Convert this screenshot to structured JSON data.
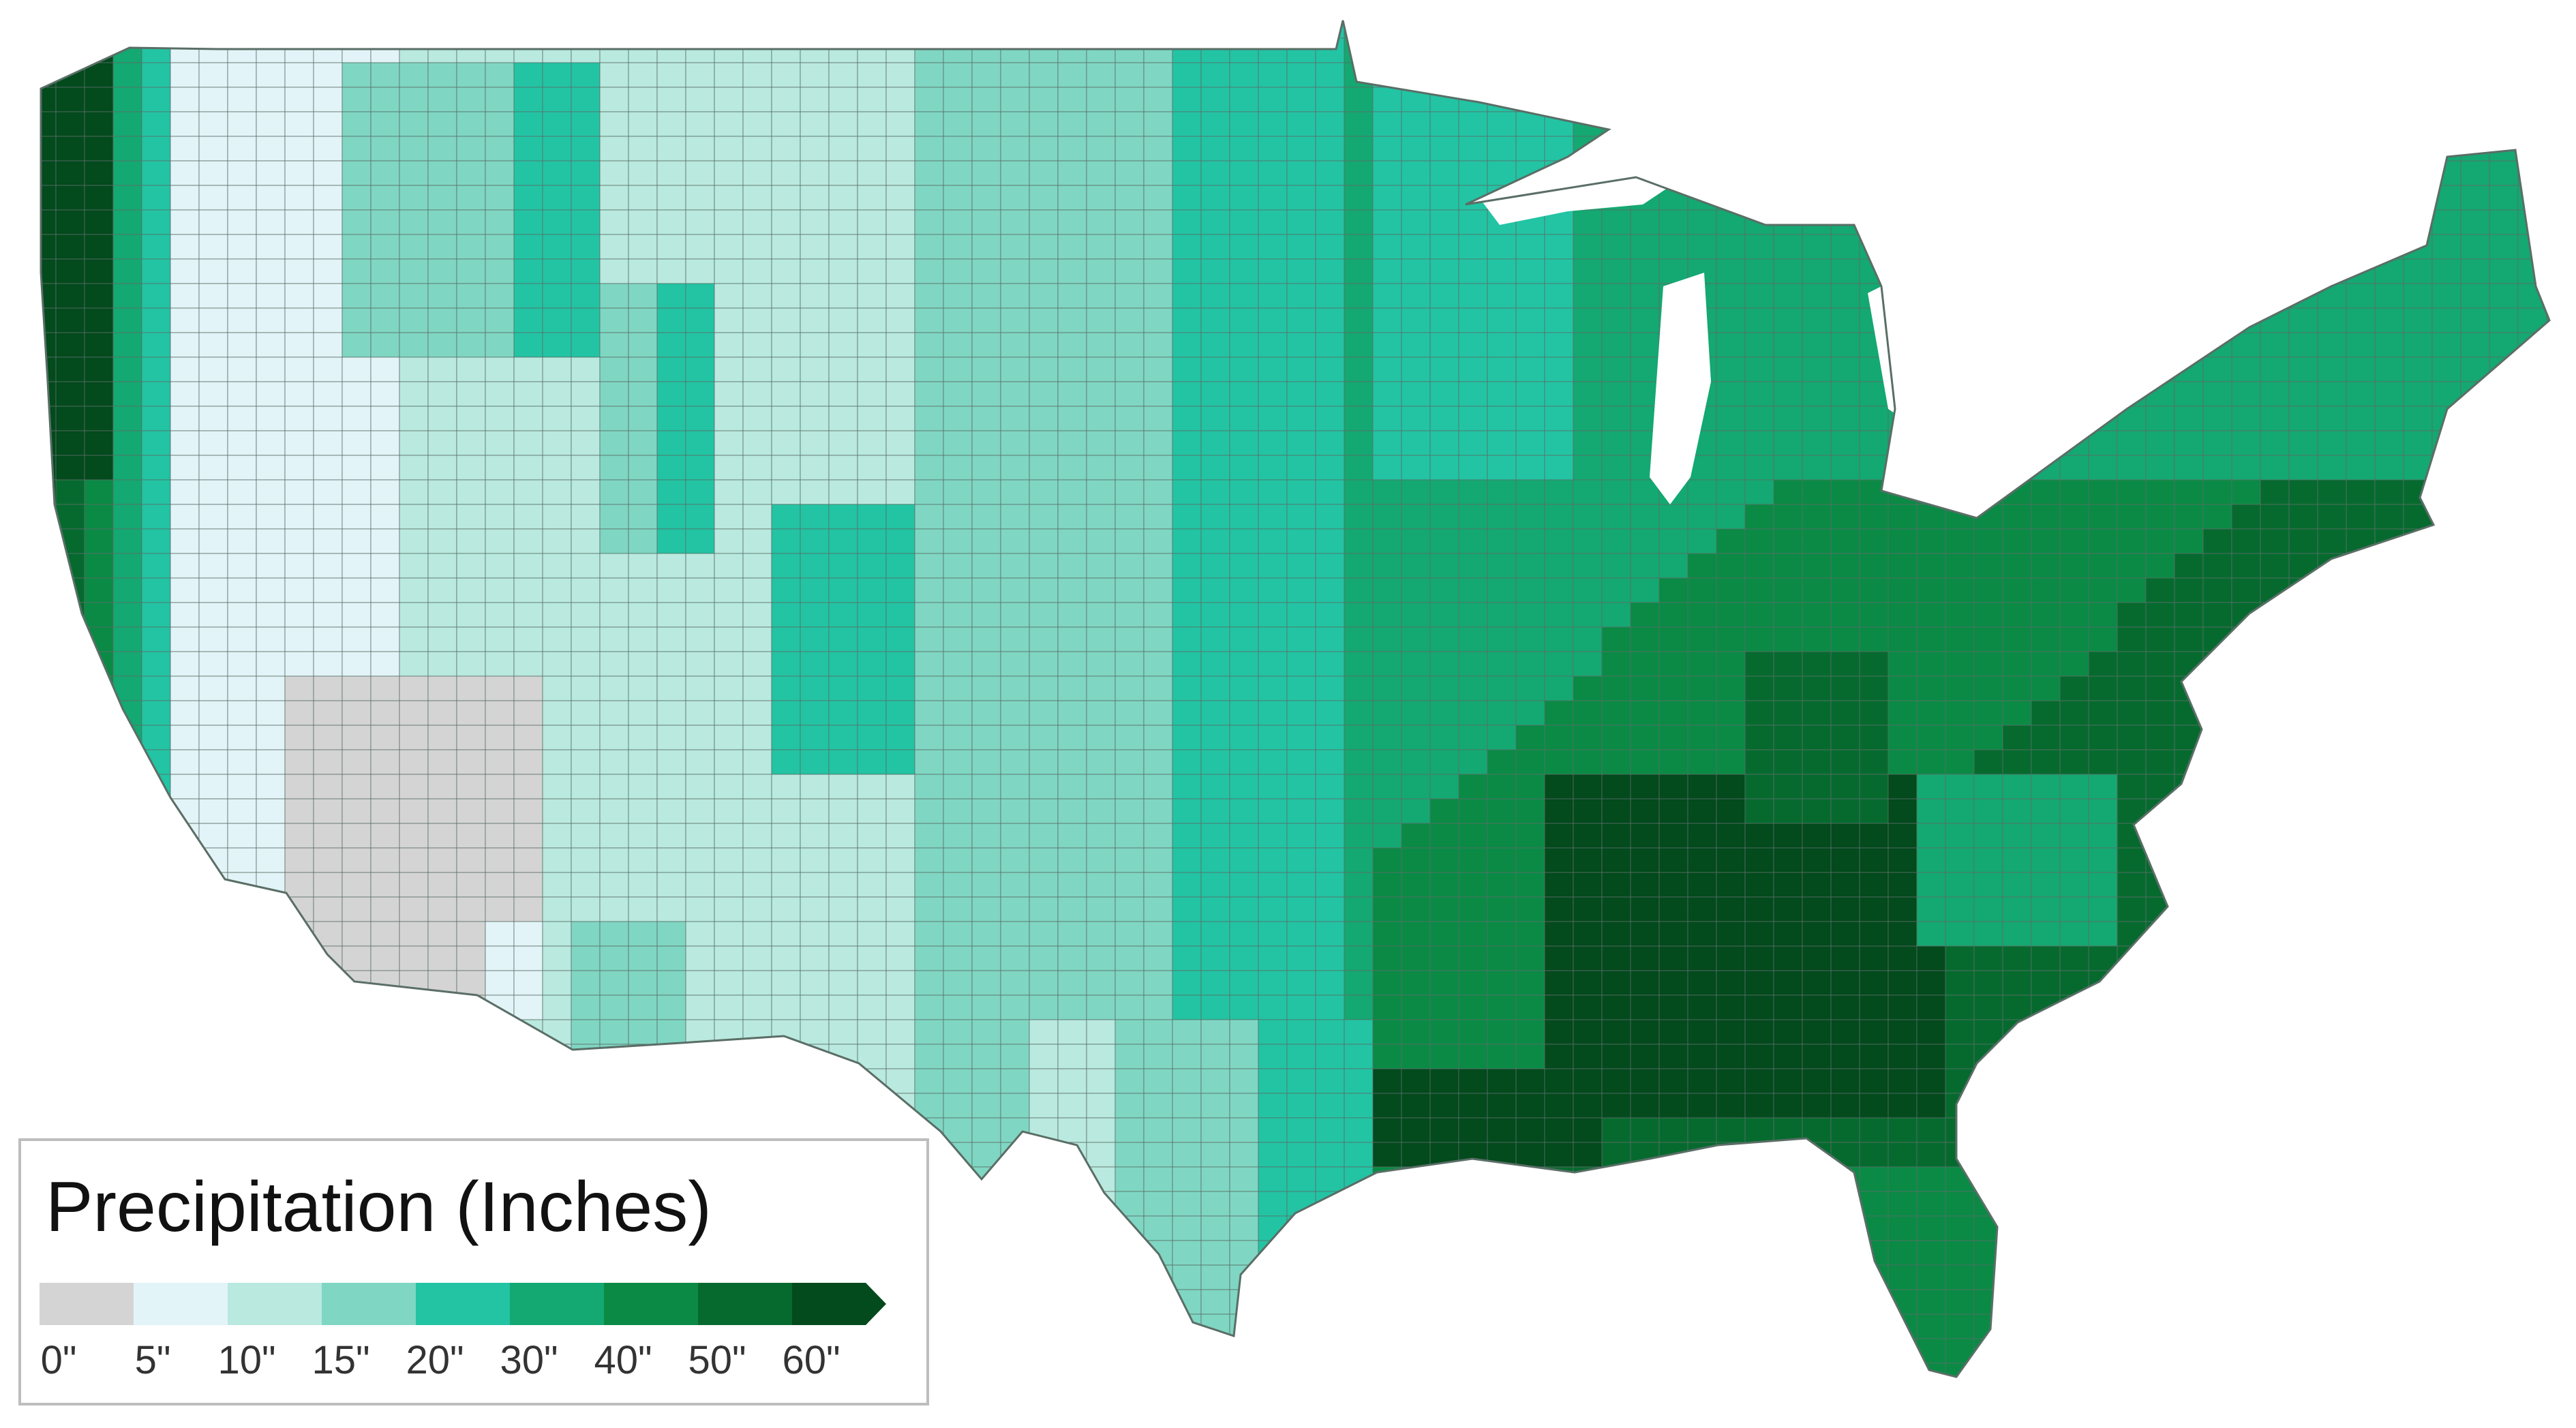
{
  "map": {
    "title": "",
    "region": "Contiguous United States",
    "unit_type": "county",
    "ocean_color": "#ffffff",
    "border_color": "#5a6e66",
    "dominant_pattern": "Precipitation increases from the arid Southwest (0-5\") to the humid Southeast (50-60\"+); Pacific Northwest coast also very wet (60\"+)."
  },
  "legend": {
    "title": "Precipitation (Inches)",
    "bins": [
      {
        "label": "0\"",
        "color": "#d4d4d4"
      },
      {
        "label": "5\"",
        "color": "#e2f4f7"
      },
      {
        "label": "10\"",
        "color": "#b9e9df"
      },
      {
        "label": "15\"",
        "color": "#7fd6c3"
      },
      {
        "label": "20\"",
        "color": "#22c4a4"
      },
      {
        "label": "30\"",
        "color": "#14a872"
      },
      {
        "label": "40\"",
        "color": "#0a8a45"
      },
      {
        "label": "50\"",
        "color": "#066a2f"
      },
      {
        "label": "60\"",
        "color": "#034a1d"
      }
    ]
  }
}
